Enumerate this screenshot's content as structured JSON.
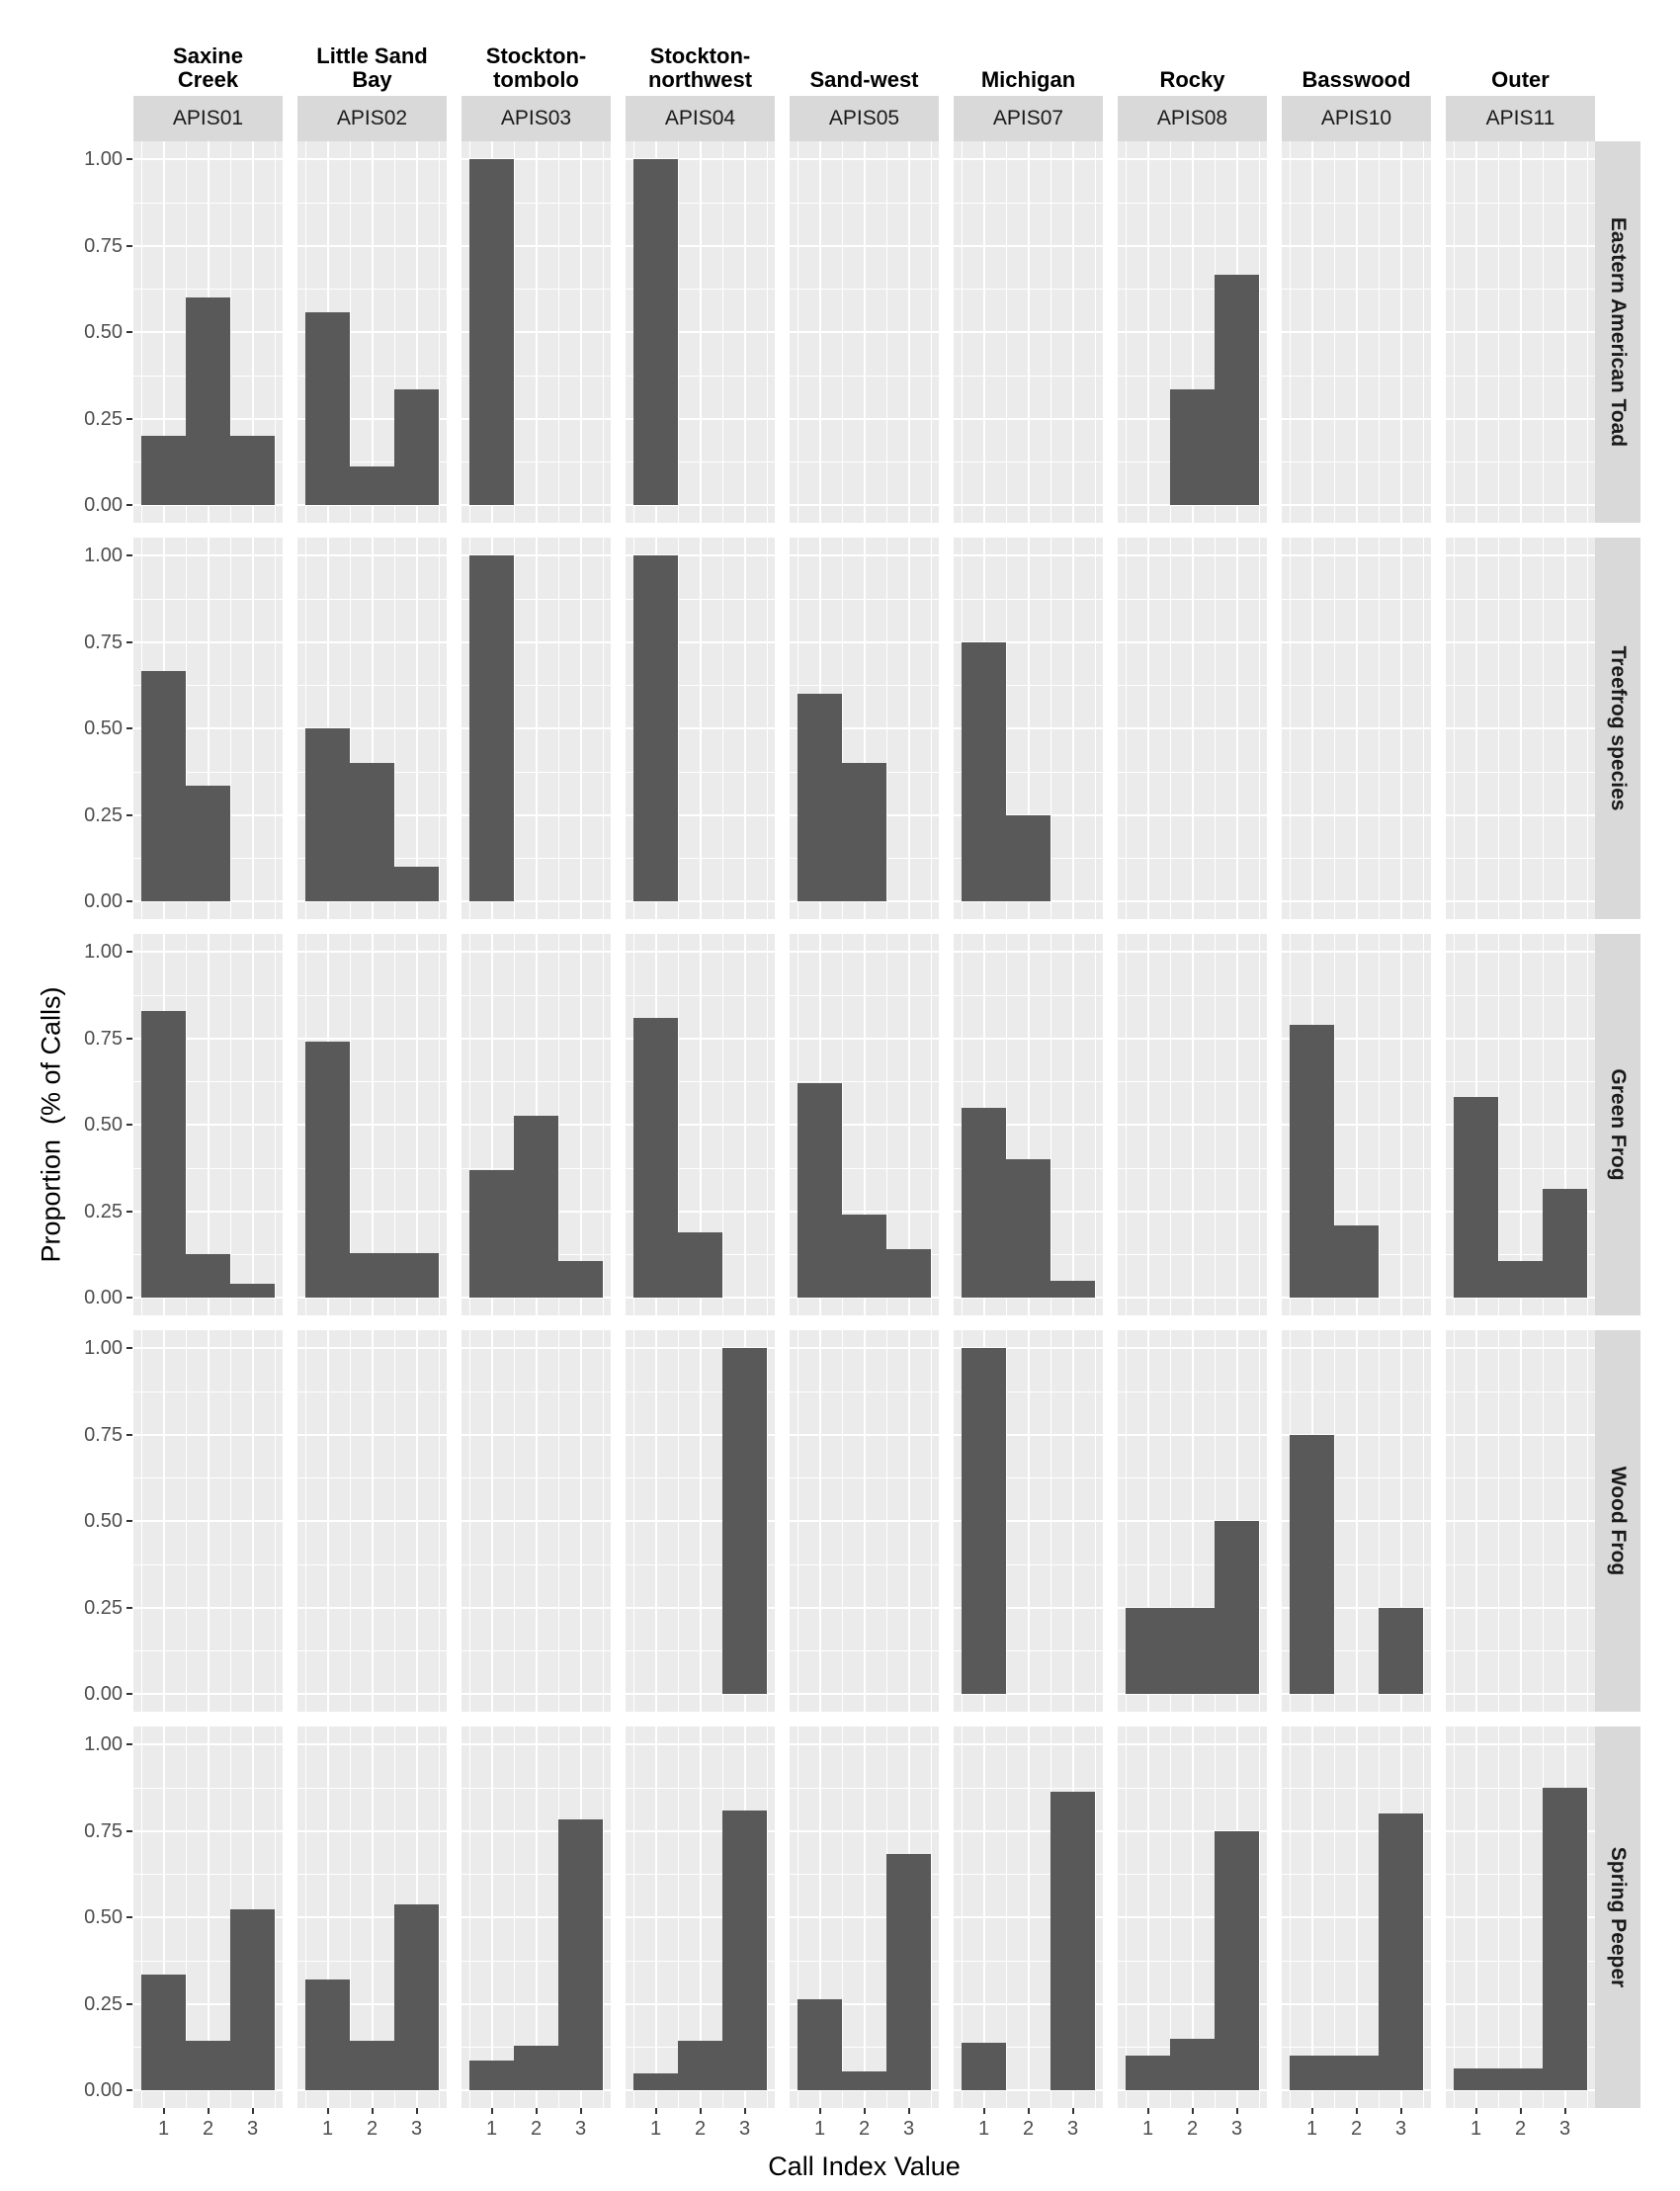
{
  "chart_data": {
    "type": "bar",
    "subtype": "faceted histogram",
    "xlabel": "Call Index Value",
    "ylabel": "Proportion  (% of Calls)",
    "ylim": [
      0,
      1
    ],
    "yticks": [
      "0.00",
      "0.25",
      "0.50",
      "0.75",
      "1.00"
    ],
    "xticks": [
      "1",
      "2",
      "3"
    ],
    "categories": [
      "1",
      "2",
      "3"
    ],
    "grid": true,
    "columns": [
      {
        "site": "APIS01",
        "name": "Saxine\nCreek"
      },
      {
        "site": "APIS02",
        "name": "Little Sand\nBay"
      },
      {
        "site": "APIS03",
        "name": "Stockton-\ntombolo"
      },
      {
        "site": "APIS04",
        "name": "Stockton-\nnorthwest"
      },
      {
        "site": "APIS05",
        "name": "Sand-west"
      },
      {
        "site": "APIS07",
        "name": "Michigan"
      },
      {
        "site": "APIS08",
        "name": "Rocky"
      },
      {
        "site": "APIS10",
        "name": "Basswood"
      },
      {
        "site": "APIS11",
        "name": "Outer"
      }
    ],
    "rows": [
      {
        "species": "Eastern American Toad",
        "values": [
          [
            0.2,
            0.6,
            0.2
          ],
          [
            0.556,
            0.111,
            0.333
          ],
          [
            1.0,
            0,
            0
          ],
          [
            1.0,
            0,
            0
          ],
          [
            0,
            0,
            0
          ],
          [
            0,
            0,
            0
          ],
          [
            0,
            0.333,
            0.667
          ],
          [
            0,
            0,
            0
          ],
          [
            0,
            0,
            0
          ]
        ]
      },
      {
        "species": "Treefrog species",
        "values": [
          [
            0.667,
            0.333,
            0
          ],
          [
            0.5,
            0.4,
            0.1
          ],
          [
            1.0,
            0,
            0
          ],
          [
            1.0,
            0,
            0
          ],
          [
            0.6,
            0.4,
            0
          ],
          [
            0.75,
            0.25,
            0
          ],
          [
            0,
            0,
            0
          ],
          [
            0,
            0,
            0
          ],
          [
            0,
            0,
            0
          ]
        ]
      },
      {
        "species": "Green Frog",
        "values": [
          [
            0.83,
            0.125,
            0.04
          ],
          [
            0.74,
            0.13,
            0.13
          ],
          [
            0.37,
            0.525,
            0.105
          ],
          [
            0.81,
            0.19,
            0
          ],
          [
            0.62,
            0.24,
            0.14
          ],
          [
            0.55,
            0.4,
            0.05
          ],
          [
            0,
            0,
            0
          ],
          [
            0.79,
            0.21,
            0
          ],
          [
            0.58,
            0.105,
            0.315
          ]
        ]
      },
      {
        "species": "Wood Frog",
        "values": [
          [
            0,
            0,
            0
          ],
          [
            0,
            0,
            0
          ],
          [
            0,
            0,
            0
          ],
          [
            0,
            0,
            1.0
          ],
          [
            0,
            0,
            0
          ],
          [
            1.0,
            0,
            0
          ],
          [
            0.25,
            0.25,
            0.5
          ],
          [
            0.75,
            0,
            0.25
          ],
          [
            0,
            0,
            0
          ]
        ]
      },
      {
        "species": "Spring Peeper",
        "values": [
          [
            0.333,
            0.143,
            0.524
          ],
          [
            0.321,
            0.143,
            0.536
          ],
          [
            0.087,
            0.13,
            0.783
          ],
          [
            0.048,
            0.143,
            0.81
          ],
          [
            0.263,
            0.053,
            0.684
          ],
          [
            0.136,
            0,
            0.864
          ],
          [
            0.1,
            0.15,
            0.75
          ],
          [
            0.1,
            0.1,
            0.8
          ],
          [
            0.0625,
            0.0625,
            0.875
          ]
        ]
      }
    ],
    "colors": {
      "bar": "#595959",
      "panel_bg": "#ebebeb",
      "strip_bg": "#d9d9d9",
      "grid": "#ffffff"
    }
  }
}
